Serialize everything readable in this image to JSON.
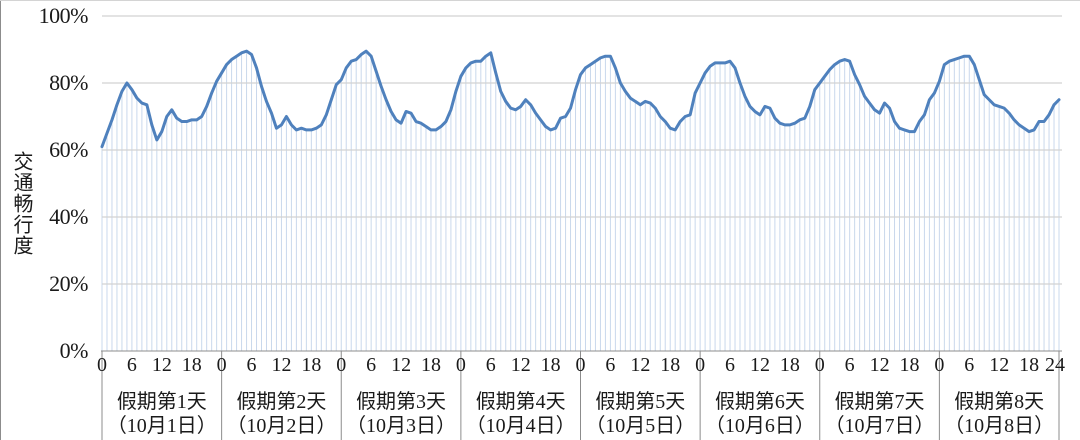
{
  "chart_data": {
    "type": "line",
    "title": "",
    "ylabel": "交通畅行度",
    "xlabel": "",
    "ylim": [
      0,
      100
    ],
    "y_tick_labels": [
      "0%",
      "20%",
      "40%",
      "60%",
      "80%",
      "100%"
    ],
    "x_hour_ticks": [
      "0",
      "6",
      "12",
      "18"
    ],
    "final_hour_tick": "24",
    "grid": "horizontal",
    "legend_position": "none",
    "line_color": "#4F81BD",
    "dropline_color": "#C9D8EC",
    "gridline_color": "#D2D2D2",
    "axis_color": "#8C8C8C",
    "days": [
      {
        "label": "假期第1天",
        "sublabel": "（10月1日）",
        "values": [
          61,
          65,
          69,
          73.5,
          77.5,
          80,
          78,
          75.5,
          74,
          73.5,
          67.5,
          63,
          65.5,
          70,
          72,
          69.5,
          68.5,
          68.5,
          69,
          69,
          70,
          73,
          77,
          80.5
        ]
      },
      {
        "label": "假期第2天",
        "sublabel": "（10月2日）",
        "values": [
          83,
          85.5,
          87,
          88,
          89,
          89.5,
          88.5,
          84.5,
          79,
          74.5,
          71,
          66.5,
          67.5,
          70,
          67.5,
          66,
          66.5,
          66,
          66,
          66.5,
          67.5,
          70.5,
          75,
          79.5
        ]
      },
      {
        "label": "假期第3天",
        "sublabel": "（10月3日）",
        "values": [
          81,
          84.5,
          86.5,
          87,
          88.5,
          89.5,
          88,
          83.5,
          79,
          75,
          71.5,
          69,
          68,
          71.5,
          71,
          68.5,
          68,
          67,
          66,
          66,
          67,
          68.5,
          72,
          77.5
        ]
      },
      {
        "label": "假期第4天",
        "sublabel": "（10月4日）",
        "values": [
          82,
          84.5,
          86,
          86.5,
          86.5,
          88,
          89,
          83,
          77.5,
          74.5,
          72.5,
          72,
          73,
          75,
          73.5,
          71,
          69,
          67,
          66,
          66.5,
          69.5,
          70,
          72.5,
          78
        ]
      },
      {
        "label": "假期第5天",
        "sublabel": "（10月5日）",
        "values": [
          82.5,
          84.5,
          85.5,
          86.5,
          87.5,
          88,
          88,
          84.5,
          80,
          77.5,
          75.5,
          74.5,
          73.5,
          74.5,
          74,
          72.5,
          70,
          68.5,
          66.5,
          66,
          68.5,
          70,
          70.5,
          77
        ]
      },
      {
        "label": "假期第6天",
        "sublabel": "（10月6日）",
        "values": [
          80,
          83,
          85,
          86,
          86,
          86,
          86.5,
          84.5,
          80,
          76,
          73,
          71.5,
          70.5,
          73,
          72.5,
          69.5,
          68,
          67.5,
          67.5,
          68,
          69,
          69.5,
          73,
          78
        ]
      },
      {
        "label": "假期第7天",
        "sublabel": "（10月7日）",
        "values": [
          80,
          82,
          84,
          85.5,
          86.5,
          87,
          86.5,
          82.5,
          79.5,
          76,
          74,
          72,
          71,
          74,
          72.5,
          68.5,
          66.5,
          66,
          65.5,
          65.5,
          68.5,
          70.5,
          75,
          77
        ]
      },
      {
        "label": "假期第8天",
        "sublabel": "（10月8日）",
        "values": [
          80.5,
          85.5,
          86.5,
          87,
          87.5,
          88,
          88,
          85.5,
          81,
          76.5,
          75,
          73.5,
          73,
          72.5,
          71,
          69,
          67.5,
          66.5,
          65.5,
          66,
          68.5,
          68.5,
          70.5,
          73.5
        ]
      }
    ],
    "final_value": 75
  }
}
